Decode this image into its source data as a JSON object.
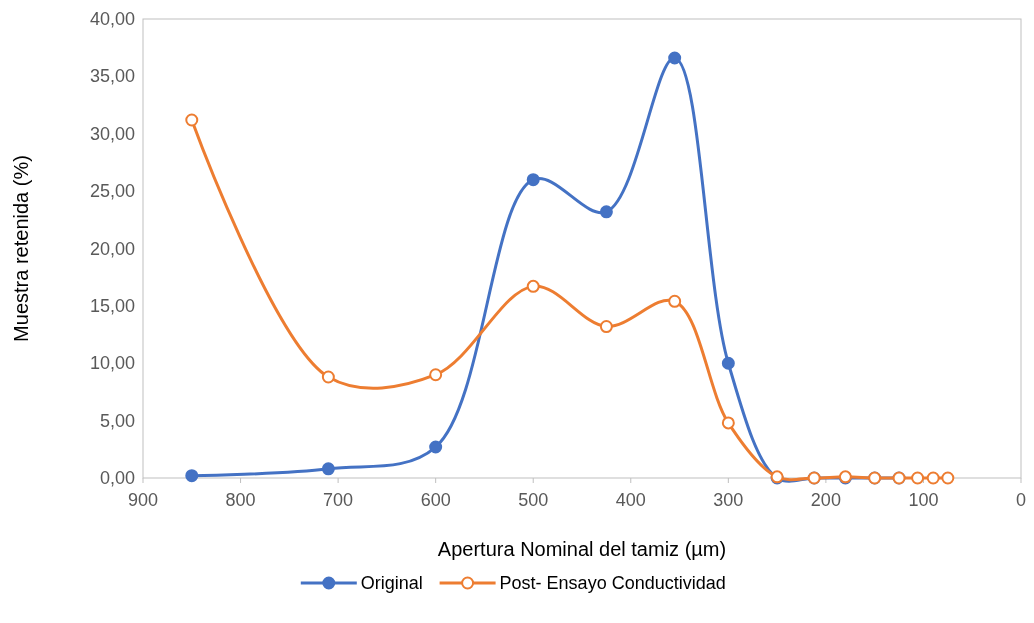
{
  "chart_data": {
    "type": "line",
    "xlabel": "Apertura Nominal del tamiz (µm)",
    "ylabel": "Muestra retenida (%)",
    "x": [
      850,
      710,
      600,
      500,
      425,
      355,
      300,
      250,
      212,
      180,
      150,
      125,
      106,
      90,
      75
    ],
    "series": [
      {
        "name": "Original",
        "color": "#4472c4",
        "values": [
          0.2,
          0.8,
          2.7,
          26.0,
          23.2,
          36.6,
          10.0,
          0,
          0,
          0,
          0,
          0,
          null,
          null,
          null
        ]
      },
      {
        "name": "Post- Ensayo Conductividad",
        "color": "#ed7d31",
        "values": [
          31.2,
          8.8,
          9.0,
          16.7,
          13.2,
          15.4,
          4.8,
          0.1,
          0,
          0.1,
          0,
          0,
          0,
          0,
          0
        ]
      }
    ],
    "xlim": [
      900,
      0
    ],
    "xticks": [
      900,
      800,
      700,
      600,
      500,
      400,
      300,
      200,
      100,
      0
    ],
    "ylim": [
      0,
      40
    ],
    "yticks": [
      {
        "value": 0,
        "label": "0,00"
      },
      {
        "value": 5,
        "label": "5,00"
      },
      {
        "value": 10,
        "label": "10,00"
      },
      {
        "value": 15,
        "label": "15,00"
      },
      {
        "value": 20,
        "label": "20,00"
      },
      {
        "value": 25,
        "label": "25,00"
      },
      {
        "value": 30,
        "label": "30,00"
      },
      {
        "value": 35,
        "label": "35,00"
      },
      {
        "value": 40,
        "label": "40,00"
      }
    ],
    "grid": false,
    "legend": "bottom",
    "marker": "circle",
    "line_style": "solid"
  }
}
